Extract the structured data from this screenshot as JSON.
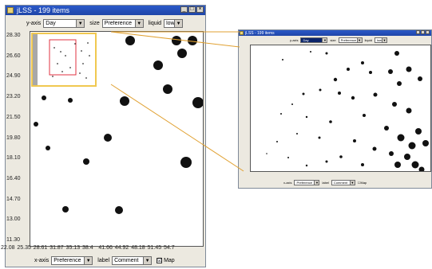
{
  "main_window": {
    "title": "jLSS - 199 items",
    "controls": {
      "min": "_",
      "max": "□",
      "close": "×"
    },
    "y_axis_label": "y-axis",
    "y_axis_value": "Day",
    "size_label": "size",
    "size_value": "Preference",
    "liquid_label": "liquid",
    "liquid_value": "low",
    "x_axis_label": "x-axis",
    "x_axis_value": "Preference",
    "label_label": "label",
    "label_value": "Comment",
    "map_label": "Map",
    "map_checked": "☑",
    "y_ticks": [
      "28.30",
      "26.60",
      "24.90",
      "23.20",
      "21.50",
      "19.80",
      "18.10",
      "16.40",
      "14.70",
      "13.00",
      "11.30"
    ],
    "x_ticks": [
      "22.08",
      "25.35",
      "28.61",
      "31.87",
      "35.13",
      "38.4",
      "41.66",
      "44.92",
      "48.18",
      "51.45",
      "54.7"
    ]
  },
  "zoom_window": {
    "title": "jLSS - 199 items",
    "y_axis_label": "y-axis",
    "y_axis_value": "Day",
    "size_label": "size",
    "size_value": "Preference",
    "liquid_label": "liquid",
    "liquid_value": "low",
    "x_axis_label": "x-axis",
    "x_axis_value": "Preference",
    "label_label": "label",
    "label_value": "Comment",
    "map_label": "Map",
    "map_checked": "☐"
  },
  "colors": {
    "accent_title": "#1f45a8",
    "highlight": "#f0c850",
    "map_frame": "#e03040",
    "dots": "#111111"
  }
}
